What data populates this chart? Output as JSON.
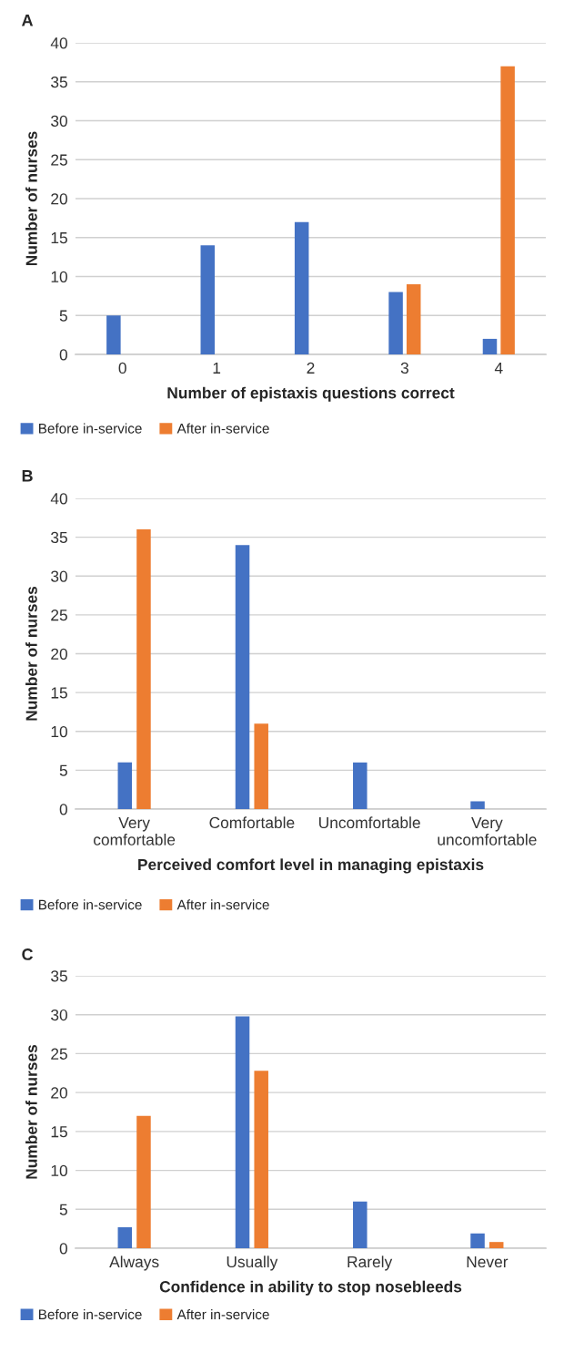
{
  "chart_data": [
    {
      "type": "bar",
      "title": "A",
      "xlabel": "Number of epistaxis questions correct",
      "ylabel": "Number of nurses",
      "categories": [
        "0",
        "1",
        "2",
        "3",
        "4"
      ],
      "series": [
        {
          "name": "Before in-service",
          "color": "#4472c4",
          "values": [
            5,
            14,
            17,
            8,
            2
          ]
        },
        {
          "name": "After in-service",
          "color": "#ed7d31",
          "values": [
            0,
            0,
            0,
            9,
            37
          ]
        }
      ],
      "ylim": [
        0,
        40
      ],
      "yticks": [
        0,
        5,
        10,
        15,
        20,
        25,
        30,
        35,
        40
      ],
      "grid": "y",
      "legend": "bottom left"
    },
    {
      "type": "bar",
      "title": "B",
      "xlabel": "Perceived comfort level in managing epistaxis",
      "ylabel": "Number of nurses",
      "categories": [
        "Very\ncomfortable",
        "Comfortable",
        "Uncomfortable",
        "Very\nuncomfortable"
      ],
      "series": [
        {
          "name": "Before in-service",
          "color": "#4472c4",
          "values": [
            6,
            34,
            6,
            1
          ]
        },
        {
          "name": "After in-service",
          "color": "#ed7d31",
          "values": [
            36,
            11,
            0,
            0
          ]
        }
      ],
      "ylim": [
        0,
        40
      ],
      "yticks": [
        0,
        5,
        10,
        15,
        20,
        25,
        30,
        35,
        40
      ],
      "grid": "y",
      "legend": "bottom left"
    },
    {
      "type": "bar",
      "title": "C",
      "xlabel": "Confidence in ability to stop nosebleeds",
      "ylabel": "Number of nurses",
      "categories": [
        "Always",
        "Usually",
        "Rarely",
        "Never"
      ],
      "series": [
        {
          "name": "Before in-service",
          "color": "#4472c4",
          "values": [
            2.7,
            29.8,
            6,
            1.9
          ]
        },
        {
          "name": "After in-service",
          "color": "#ed7d31",
          "values": [
            17,
            22.8,
            0,
            0.8
          ]
        }
      ],
      "ylim": [
        0,
        35
      ],
      "yticks": [
        0,
        5,
        10,
        15,
        20,
        25,
        30,
        35
      ],
      "grid": "y",
      "legend": "bottom left"
    }
  ]
}
